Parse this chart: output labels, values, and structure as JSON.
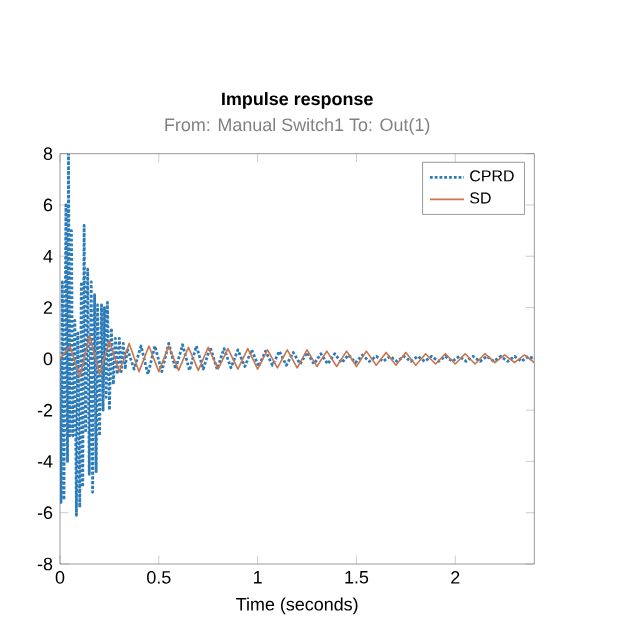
{
  "chart_data": {
    "type": "line",
    "title": "Impulse response",
    "subtitle": "From: Manual Switch1  To: Out(1)",
    "xlabel": "Time (seconds)",
    "xlim": [
      0,
      2.4
    ],
    "xticks": [
      0,
      0.5,
      1,
      1.5,
      2
    ],
    "ylim": [
      -8,
      8
    ],
    "yticks": [
      -8,
      -6,
      -4,
      -2,
      0,
      2,
      4,
      6,
      8
    ],
    "legend": "top right",
    "grid": false,
    "series": [
      {
        "name": "CPRD",
        "color": "#2b7bb9",
        "line_style": "dotted",
        "x": [
          0,
          0.005,
          0.012,
          0.02,
          0.03,
          0.038,
          0.043,
          0.05,
          0.058,
          0.065,
          0.075,
          0.083,
          0.09,
          0.1,
          0.108,
          0.115,
          0.122,
          0.13,
          0.14,
          0.148,
          0.158,
          0.165,
          0.175,
          0.183,
          0.19,
          0.2,
          0.21,
          0.218,
          0.225,
          0.233,
          0.24,
          0.25,
          0.26,
          0.27,
          0.28,
          0.29,
          0.3,
          0.31,
          0.32,
          0.33,
          0.34,
          0.375,
          0.41,
          0.445,
          0.48,
          0.515,
          0.55,
          0.585,
          0.62,
          0.655,
          0.69,
          0.725,
          0.76,
          0.795,
          0.83,
          0.865,
          0.9,
          0.935,
          0.97,
          1.005,
          1.04,
          1.075,
          1.11,
          1.145,
          1.18,
          1.215,
          1.25,
          1.285,
          1.32,
          1.355,
          1.39,
          1.425,
          1.46,
          1.495,
          1.53,
          1.565,
          1.6,
          1.635,
          1.67,
          1.705,
          1.74,
          1.775,
          1.81,
          1.845,
          1.88,
          1.915,
          1.95,
          1.985,
          2.02,
          2.055,
          2.09,
          2.125,
          2.16,
          2.195,
          2.23,
          2.265,
          2.3,
          2.335,
          2.37,
          2.4
        ],
        "values": [
          0,
          -5.6,
          3,
          -5.5,
          6,
          -4,
          8,
          -3,
          5,
          -3,
          1.5,
          -6.1,
          1,
          -5.8,
          3,
          -5,
          5.2,
          -2.8,
          3.5,
          -4.5,
          3,
          -5.2,
          2.5,
          -4.4,
          2.1,
          -3,
          2.1,
          -2,
          2,
          -1.5,
          2.2,
          -2,
          1.2,
          -1,
          0.8,
          -0.6,
          0.8,
          -0.5,
          0.6,
          -0.4,
          0.4,
          -0.4,
          0.5,
          -0.6,
          0.5,
          -0.5,
          0.6,
          -0.4,
          0.55,
          -0.45,
          0.5,
          -0.4,
          0.45,
          -0.4,
          0.4,
          -0.35,
          0.35,
          -0.3,
          0.35,
          -0.3,
          0.3,
          -0.25,
          0.3,
          -0.25,
          0.25,
          -0.2,
          0.25,
          -0.2,
          0.2,
          -0.2,
          0.2,
          -0.15,
          0.15,
          -0.15,
          0.15,
          -0.1,
          0.1,
          -0.1,
          0.1,
          -0.1,
          0.1,
          -0.1,
          0.1,
          -0.1,
          0.1,
          -0.1,
          0.1,
          -0.1,
          0.1,
          -0.1,
          0.1,
          -0.1,
          0.1,
          -0.1,
          0.1,
          -0.1,
          0.1,
          -0.1,
          0.1,
          0
        ]
      },
      {
        "name": "SD",
        "color": "#c8744e",
        "line_style": "solid",
        "x": [
          0,
          0.05,
          0.1,
          0.15,
          0.2,
          0.25,
          0.3,
          0.35,
          0.4,
          0.45,
          0.5,
          0.55,
          0.6,
          0.65,
          0.7,
          0.75,
          0.8,
          0.85,
          0.9,
          0.95,
          1,
          1.05,
          1.1,
          1.15,
          1.2,
          1.25,
          1.3,
          1.35,
          1.4,
          1.45,
          1.5,
          1.55,
          1.6,
          1.65,
          1.7,
          1.75,
          1.8,
          1.85,
          1.9,
          1.95,
          2,
          2.05,
          2.1,
          2.15,
          2.2,
          2.25,
          2.3,
          2.35,
          2.4
        ],
        "values": [
          0,
          0.5,
          -0.7,
          0.9,
          -0.6,
          0.7,
          -0.5,
          0.6,
          -0.5,
          0.5,
          -0.5,
          0.5,
          -0.45,
          0.45,
          -0.45,
          0.45,
          -0.4,
          0.4,
          -0.4,
          0.4,
          -0.4,
          0.35,
          -0.35,
          0.35,
          -0.35,
          0.35,
          -0.3,
          0.3,
          -0.3,
          0.3,
          -0.3,
          0.3,
          -0.25,
          0.25,
          -0.25,
          0.25,
          -0.25,
          0.2,
          -0.2,
          0.2,
          -0.2,
          0.2,
          -0.2,
          0.2,
          -0.15,
          0.15,
          -0.15,
          0.15,
          -0.15
        ]
      }
    ]
  }
}
